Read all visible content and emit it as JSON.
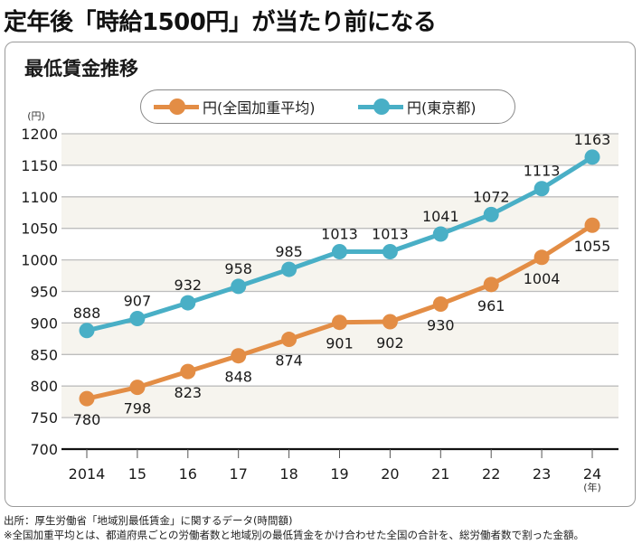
{
  "headline": "定年後「時給1500円」が当たり前になる",
  "chart_data": {
    "type": "line",
    "title": "最低賃金推移",
    "ylabel": "(円)",
    "xlabel": "(年)",
    "ylim": [
      700,
      1200
    ],
    "yticks": [
      700,
      750,
      800,
      850,
      900,
      950,
      1000,
      1050,
      1100,
      1150,
      1200
    ],
    "categories": [
      "2014",
      "15",
      "16",
      "17",
      "18",
      "19",
      "20",
      "21",
      "22",
      "23",
      "24"
    ],
    "grid": true,
    "legend_position": "top",
    "series": [
      {
        "name": "円(全国加重平均)",
        "color": "#e38d45",
        "label_position": "below",
        "values": [
          780,
          798,
          823,
          848,
          874,
          901,
          902,
          930,
          961,
          1004,
          1055
        ]
      },
      {
        "name": "円(東京都)",
        "color": "#49afc6",
        "label_position": "above",
        "values": [
          888,
          907,
          932,
          958,
          985,
          1013,
          1013,
          1041,
          1072,
          1113,
          1163
        ]
      }
    ]
  },
  "colors": {
    "band": "#f6f4ee",
    "gridline": "#bdbdbd",
    "axis": "#111111"
  },
  "footer": {
    "source": "出所：厚生労働省「地域別最低賃金」に関するデータ(時間額)",
    "note": "※全国加重平均とは、都道府県ごとの労働者数と地域別の最低賃金をかけ合わせた全国の合計を、総労働者数で割った金額。"
  }
}
